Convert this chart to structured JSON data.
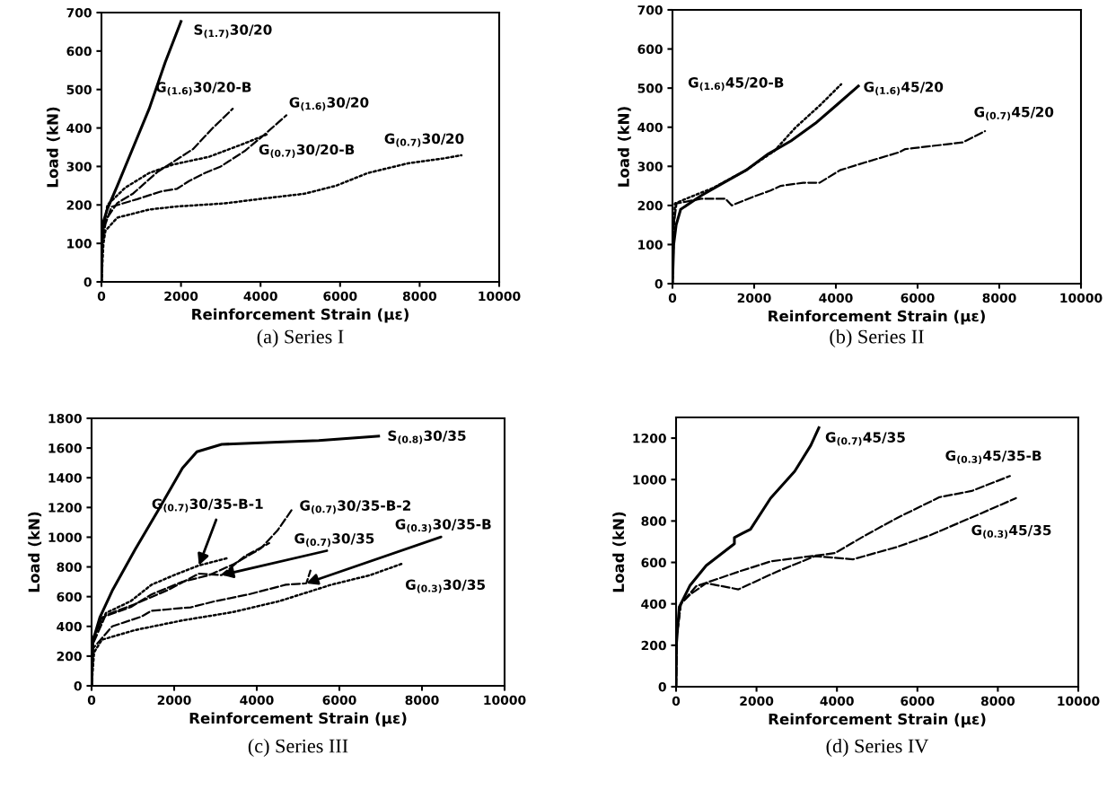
{
  "chart_data": [
    {
      "type": "line",
      "xlabel": "Reinforcement Strain (με)",
      "ylabel": "Load (kN)",
      "xlim": [
        0,
        10000
      ],
      "xticks": [
        0,
        2000,
        4000,
        6000,
        8000,
        10000
      ],
      "ylim": [
        0,
        700
      ],
      "yticks": [
        0,
        100,
        200,
        300,
        400,
        500,
        600,
        700
      ],
      "annotations": [
        "(a) Series I"
      ],
      "series": [
        {
          "name": "S$_{(1.7)}$30/20",
          "color": "#000000",
          "line_style": "solid",
          "x": [
            0,
            10,
            30,
            150,
            400,
            800,
            1200,
            1600,
            2000
          ],
          "values": [
            0,
            100,
            150,
            190,
            250,
            350,
            450,
            570,
            677
          ]
        },
        {
          "name": "G$_{(1.6)}$30/20-B",
          "color": "#000000",
          "line_style": "dashed",
          "x": [
            0,
            20,
            100,
            400,
            800,
            1400,
            2300,
            2800,
            3300
          ],
          "values": [
            0,
            110,
            160,
            205,
            230,
            285,
            345,
            400,
            450
          ]
        },
        {
          "name": "G$_{(1.6)}$30/20",
          "color": "#000000",
          "line_style": "dashed",
          "x": [
            0,
            20,
            100,
            250,
            900,
            1500,
            1900,
            2200,
            2600,
            3000,
            3600,
            4100,
            4650
          ],
          "values": [
            0,
            100,
            150,
            195,
            215,
            235,
            242,
            262,
            283,
            300,
            340,
            383,
            433
          ]
        },
        {
          "name": "G$_{(0.7)}$30/20-B",
          "color": "#000000",
          "line_style": "dotted",
          "x": [
            0,
            30,
            150,
            600,
            1200,
            1800,
            2700,
            3600,
            4200
          ],
          "values": [
            0,
            120,
            200,
            245,
            283,
            305,
            325,
            360,
            385
          ]
        },
        {
          "name": "G$_{(0.7)}$30/20",
          "color": "#000000",
          "line_style": "dotted",
          "x": [
            0,
            50,
            100,
            400,
            1200,
            1900,
            3100,
            4100,
            5100,
            5900,
            6700,
            7700,
            8600,
            9050
          ],
          "values": [
            0,
            100,
            133,
            167,
            188,
            196,
            204,
            217,
            229,
            250,
            283,
            308,
            321,
            329
          ]
        }
      ]
    },
    {
      "type": "line",
      "xlabel": "Reinforcement Strain (με)",
      "ylabel": "Load (kN)",
      "xlim": [
        0,
        10000
      ],
      "xticks": [
        0,
        2000,
        4000,
        6000,
        8000,
        10000
      ],
      "ylim": [
        0,
        700
      ],
      "yticks": [
        0,
        100,
        200,
        300,
        400,
        500,
        600,
        700
      ],
      "annotations": [
        "(b) Series II"
      ],
      "series": [
        {
          "name": "G$_{(1.6)}$45/20-B",
          "color": "#000000",
          "line_style": "dotted",
          "x": [
            0,
            30,
            60,
            400,
            1000,
            1800,
            2500,
            3000,
            3600,
            4130
          ],
          "values": [
            0,
            130,
            205,
            220,
            245,
            290,
            340,
            398,
            455,
            510
          ]
        },
        {
          "name": "G$_{(1.6)}$45/20",
          "color": "#000000",
          "line_style": "solid",
          "x": [
            0,
            30,
            90,
            200,
            700,
            1250,
            1800,
            2350,
            2900,
            3500,
            4000,
            4550
          ],
          "values": [
            0,
            100,
            150,
            190,
            225,
            258,
            290,
            332,
            365,
            410,
            455,
            505
          ]
        },
        {
          "name": "G$_{(0.7)}$45/20",
          "color": "#000000",
          "line_style": "dashed",
          "x": [
            0,
            30,
            100,
            700,
            1300,
            1450,
            1950,
            2400,
            2650,
            3200,
            3600,
            4100,
            4750,
            5550,
            5700,
            6350,
            7100,
            7650
          ],
          "values": [
            0,
            150,
            205,
            217,
            217,
            200,
            221,
            238,
            250,
            258,
            258,
            290,
            311,
            336,
            344,
            352,
            361,
            390
          ]
        }
      ]
    },
    {
      "type": "line",
      "xlabel": "Reinforcement Strain (με)",
      "ylabel": "Load (kN)",
      "xlim": [
        0,
        10000
      ],
      "xticks": [
        0,
        2000,
        4000,
        6000,
        8000,
        10000
      ],
      "ylim": [
        0,
        1800
      ],
      "yticks": [
        0,
        200,
        400,
        600,
        800,
        1000,
        1200,
        1400,
        1600,
        1800
      ],
      "annotations": [
        "(c) Series III"
      ],
      "series": [
        {
          "name": "S$_{(0.8)}$30/35",
          "color": "#000000",
          "line_style": "solid",
          "x": [
            0,
            30,
            200,
            500,
            1050,
            1600,
            2200,
            2550,
            3150,
            4500,
            5500,
            6950
          ],
          "values": [
            0,
            300,
            460,
            640,
            915,
            1175,
            1465,
            1575,
            1625,
            1640,
            1650,
            1680
          ]
        },
        {
          "name": "G$_{(0.7)}$30/35-B-2",
          "color": "#000000",
          "line_style": "dashed",
          "x": [
            0,
            30,
            250,
            950,
            1450,
            2200,
            2850,
            3450,
            4100,
            4500,
            4850
          ],
          "values": [
            0,
            300,
            460,
            530,
            615,
            700,
            745,
            820,
            925,
            1045,
            1185
          ]
        },
        {
          "name": "G$_{(0.7)}$30/35-B-1",
          "color": "#000000",
          "line_style": "dotted",
          "x": [
            0,
            30,
            350,
            950,
            1450,
            2000,
            2600,
            3300
          ],
          "values": [
            0,
            320,
            490,
            570,
            680,
            745,
            810,
            860
          ]
        },
        {
          "name": "G$_{(0.7)}$30/35",
          "color": "#000000",
          "line_style": "dashed",
          "x": [
            0,
            30,
            340,
            1050,
            1850,
            2600,
            3150,
            3700,
            4300
          ],
          "values": [
            0,
            280,
            475,
            550,
            645,
            755,
            745,
            870,
            960
          ]
        },
        {
          "name": "G$_{(0.3)}$30/35-B",
          "color": "#000000",
          "line_style": "dashed",
          "x": [
            0,
            30,
            500,
            1200,
            1450,
            2400,
            3000,
            3800,
            4700,
            5200,
            5300
          ],
          "values": [
            0,
            250,
            400,
            465,
            505,
            528,
            570,
            615,
            680,
            690,
            775
          ]
        },
        {
          "name": "G$_{(0.3)}$30/35",
          "color": "#000000",
          "line_style": "dotted",
          "x": [
            0,
            60,
            250,
            1050,
            2200,
            3400,
            4550,
            5800,
            6750,
            7500
          ],
          "values": [
            0,
            225,
            310,
            375,
            440,
            495,
            570,
            680,
            745,
            820
          ]
        }
      ]
    },
    {
      "type": "line",
      "xlabel": "Reinforcement Strain (με)",
      "ylabel": "Load (kN)",
      "xlim": [
        0,
        10000
      ],
      "xticks": [
        0,
        2000,
        4000,
        6000,
        8000,
        10000
      ],
      "ylim": [
        0,
        1300
      ],
      "yticks": [
        0,
        200,
        400,
        600,
        800,
        1000,
        1200
      ],
      "annotations": [
        "(d) Series IV"
      ],
      "series": [
        {
          "name": "G$_{(0.7)}$45/35",
          "color": "#000000",
          "line_style": "solid",
          "x": [
            0,
            10,
            80,
            350,
            750,
            1450,
            1450,
            1650,
            1850,
            2350,
            2950,
            3350,
            3550
          ],
          "values": [
            0,
            210,
            385,
            490,
            585,
            690,
            720,
            740,
            760,
            910,
            1040,
            1165,
            1250
          ]
        },
        {
          "name": "G$_{(0.3)}$45/35-B",
          "color": "#000000",
          "line_style": "dashed",
          "x": [
            0,
            20,
            120,
            500,
            1550,
            2350,
            3150,
            3950,
            4700,
            5500,
            6550,
            7350,
            8300
          ],
          "values": [
            0,
            250,
            400,
            485,
            555,
            605,
            625,
            645,
            730,
            815,
            915,
            945,
            1017
          ]
        },
        {
          "name": "G$_{(0.3)}$45/35",
          "color": "#000000",
          "line_style": "dashed",
          "x": [
            0,
            20,
            120,
            350,
            750,
            1550,
            2500,
            3450,
            4400,
            5500,
            6300,
            7500,
            8450
          ],
          "values": [
            0,
            250,
            400,
            445,
            500,
            470,
            555,
            630,
            615,
            675,
            730,
            830,
            910
          ]
        }
      ]
    }
  ]
}
